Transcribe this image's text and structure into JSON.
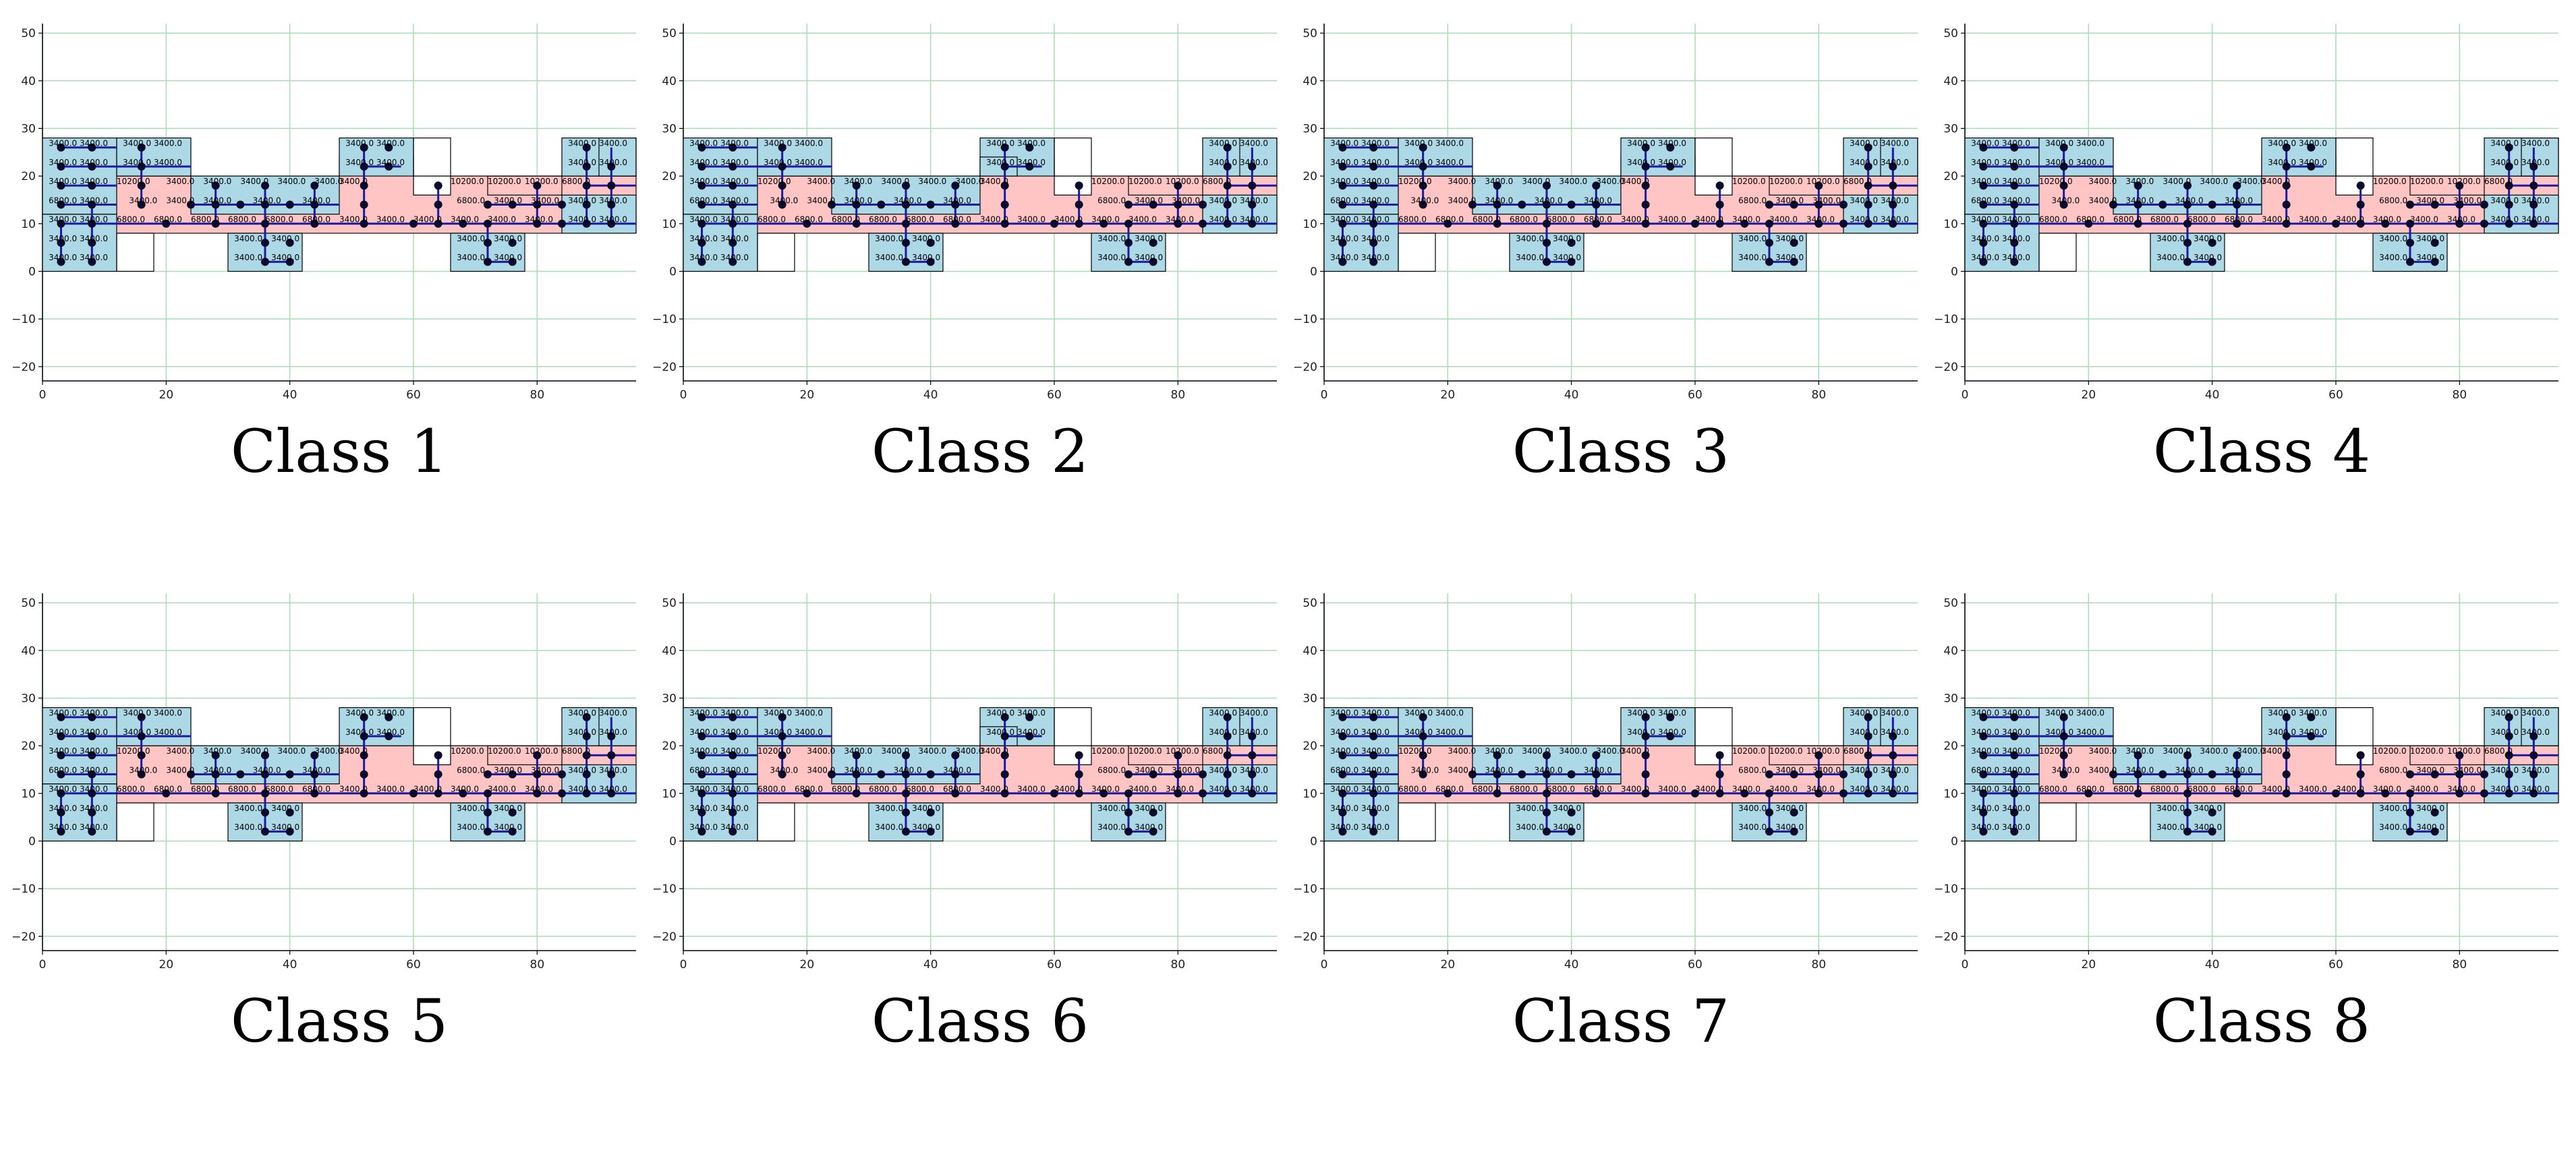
{
  "figure": {
    "x_axis": {
      "range": [
        0,
        96
      ],
      "ticks": [
        0,
        20,
        40,
        60,
        80
      ]
    },
    "y_axis": {
      "range": [
        -23,
        52
      ],
      "ticks": [
        50,
        40,
        30,
        20,
        10,
        0,
        -10,
        -20
      ]
    },
    "colors": {
      "grid": "#a8dcb4",
      "blue_room": "#add8e6",
      "pink_zone": "#ffc4c4",
      "outline": "#000000",
      "connection": "#1a1aa6",
      "node": "#0b0b2e"
    },
    "room_value_main": "3400.0",
    "room_value_alt": "6800.0",
    "room_value_corridor": "10200.0",
    "panels": [
      {
        "title": "Class 1",
        "variant": 1
      },
      {
        "title": "Class 2",
        "variant": 2
      },
      {
        "title": "Class 3",
        "variant": 3
      },
      {
        "title": "Class 4",
        "variant": 4
      },
      {
        "title": "Class 5",
        "variant": 5
      },
      {
        "title": "Class 6",
        "variant": 6
      },
      {
        "title": "Class 7",
        "variant": 7
      },
      {
        "title": "Class 8",
        "variant": 8
      }
    ]
  }
}
